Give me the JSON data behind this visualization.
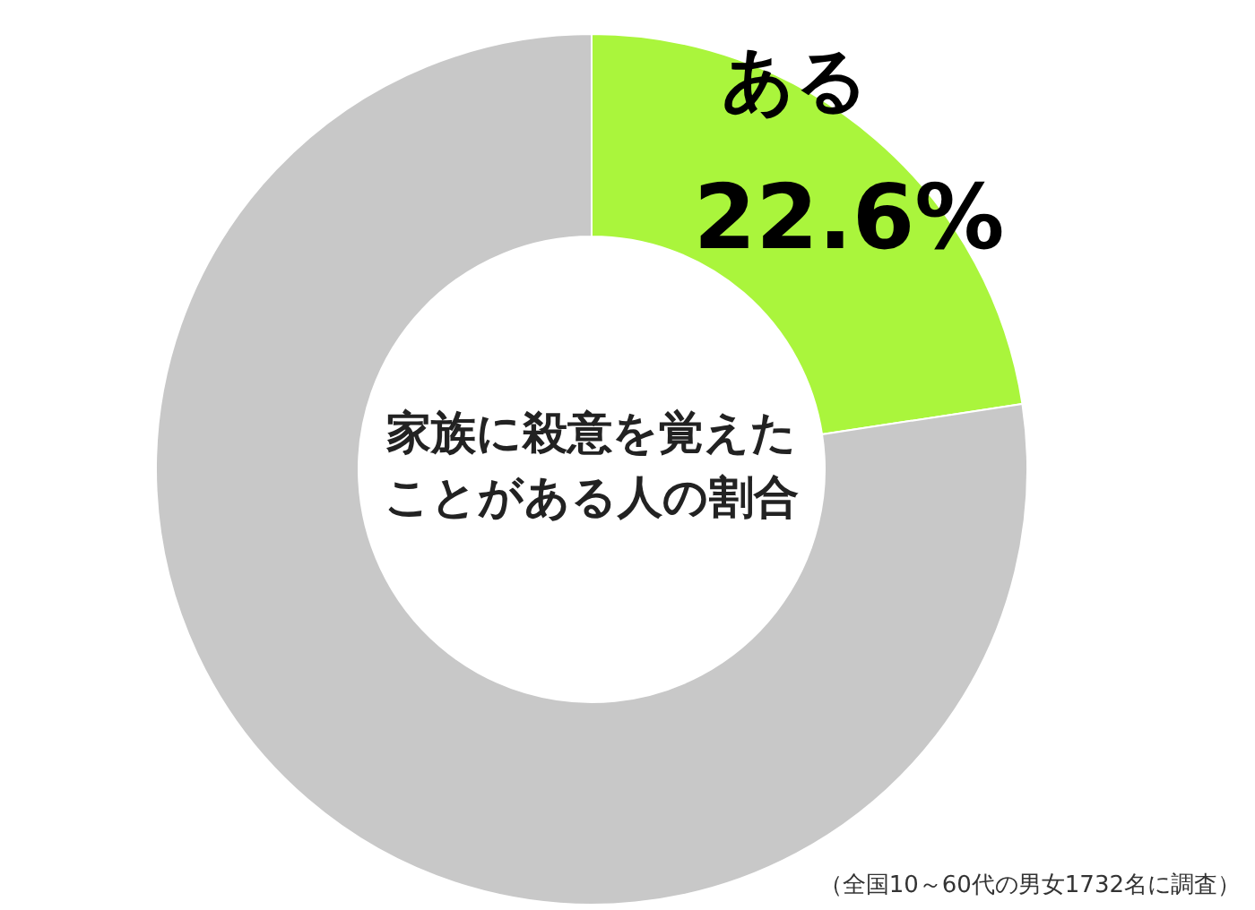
{
  "chart_data": {
    "type": "donut",
    "title": "家族に殺意を覚えたことがある人の割合",
    "categories": [
      "ある",
      null
    ],
    "values": [
      22.6,
      77.4
    ],
    "colors": [
      "#aaf53c",
      "#c8c8c8"
    ],
    "value_labels": [
      "22.6%",
      null
    ],
    "annotations": [
      "（全国10～60代の男女1732名に調査）"
    ]
  }
}
